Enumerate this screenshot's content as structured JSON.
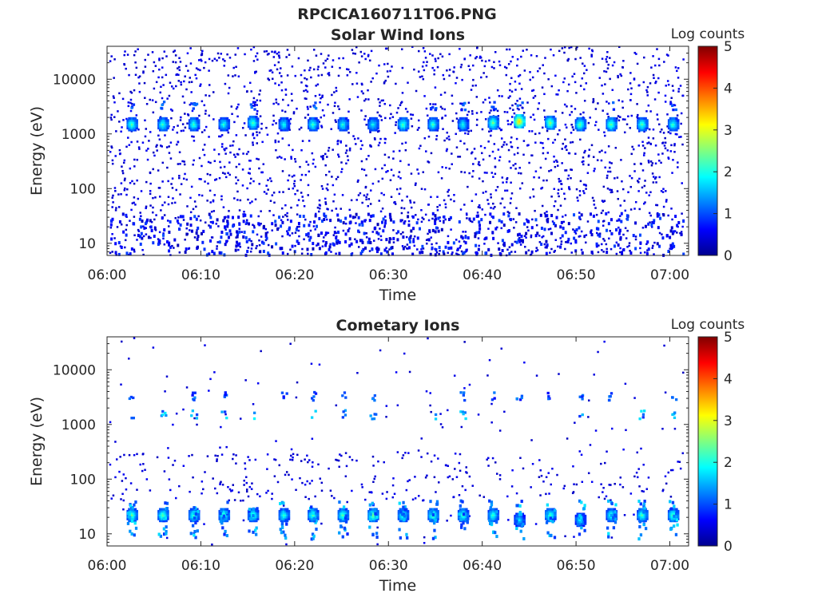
{
  "figure_title": "RPCICA160711T06.PNG",
  "chart_data": [
    {
      "type": "heatmap",
      "title": "Solar Wind Ions",
      "xlabel": "Time",
      "ylabel": "Energy (eV)",
      "y_scale": "log",
      "xlim": [
        "06:00",
        "07:02"
      ],
      "ylim": [
        6,
        40000
      ],
      "x_ticks": [
        "06:00",
        "06:10",
        "06:20",
        "06:30",
        "06:40",
        "06:50",
        "07:00"
      ],
      "y_ticks": [
        "10",
        "100",
        "1000",
        "10000"
      ],
      "colorbar": {
        "label": "Log counts",
        "ticks": [
          "0",
          "1",
          "2",
          "3",
          "4",
          "5"
        ],
        "range": [
          0,
          5
        ],
        "colormap": "jet"
      },
      "grid": false,
      "description_of_structure": "Periodic bursts approximately every 3.2 minutes",
      "bursts": [
        {
          "time": "06:02.7",
          "energy_eV": 1500,
          "peak_log_counts": 2.3
        },
        {
          "time": "06:06.0",
          "energy_eV": 1500,
          "peak_log_counts": 2.2
        },
        {
          "time": "06:09.3",
          "energy_eV": 1500,
          "peak_log_counts": 2.2
        },
        {
          "time": "06:12.5",
          "energy_eV": 1500,
          "peak_log_counts": 2.1
        },
        {
          "time": "06:15.6",
          "energy_eV": 1600,
          "peak_log_counts": 2.3
        },
        {
          "time": "06:18.9",
          "energy_eV": 1500,
          "peak_log_counts": 2.0
        },
        {
          "time": "06:22.0",
          "energy_eV": 1500,
          "peak_log_counts": 2.2
        },
        {
          "time": "06:25.2",
          "energy_eV": 1500,
          "peak_log_counts": 2.1
        },
        {
          "time": "06:28.4",
          "energy_eV": 1500,
          "peak_log_counts": 2.0
        },
        {
          "time": "06:31.6",
          "energy_eV": 1500,
          "peak_log_counts": 2.3
        },
        {
          "time": "06:34.8",
          "energy_eV": 1500,
          "peak_log_counts": 2.2
        },
        {
          "time": "06:38.0",
          "energy_eV": 1500,
          "peak_log_counts": 2.0
        },
        {
          "time": "06:41.2",
          "energy_eV": 1600,
          "peak_log_counts": 2.5
        },
        {
          "time": "06:44.0",
          "energy_eV": 1700,
          "peak_log_counts": 3.4
        },
        {
          "time": "06:47.3",
          "energy_eV": 1600,
          "peak_log_counts": 2.6
        },
        {
          "time": "06:50.5",
          "energy_eV": 1500,
          "peak_log_counts": 2.4
        },
        {
          "time": "06:53.8",
          "energy_eV": 1500,
          "peak_log_counts": 2.4
        },
        {
          "time": "06:57.1",
          "energy_eV": 1500,
          "peak_log_counts": 2.3
        },
        {
          "time": "07:00.4",
          "energy_eV": 1500,
          "peak_log_counts": 2.2
        }
      ],
      "secondary_band": {
        "energy_eV": 3300,
        "peak_log_counts": 1.2
      },
      "low_energy_band": {
        "energy_range_eV": [
          6,
          35
        ],
        "peak_log_counts": 1.0
      },
      "background_noise": {
        "energy_range_eV": [
          6,
          40000
        ],
        "log_counts": 0.3
      }
    },
    {
      "type": "heatmap",
      "title": "Cometary Ions",
      "xlabel": "Time",
      "ylabel": "Energy (eV)",
      "y_scale": "log",
      "xlim": [
        "06:00",
        "07:02"
      ],
      "ylim": [
        6,
        40000
      ],
      "x_ticks": [
        "06:00",
        "06:10",
        "06:20",
        "06:30",
        "06:40",
        "06:50",
        "07:00"
      ],
      "y_ticks": [
        "10",
        "100",
        "1000",
        "10000"
      ],
      "colorbar": {
        "label": "Log counts",
        "ticks": [
          "0",
          "1",
          "2",
          "3",
          "4",
          "5"
        ],
        "range": [
          0,
          5
        ],
        "colormap": "jet"
      },
      "grid": false,
      "description_of_structure": "Periodic bursts approximately every 3.2 minutes",
      "bursts": [
        {
          "time": "06:02.7",
          "energy_eV": 22,
          "peak_log_counts": 2.4
        },
        {
          "time": "06:06.0",
          "energy_eV": 22,
          "peak_log_counts": 2.4
        },
        {
          "time": "06:09.3",
          "energy_eV": 22,
          "peak_log_counts": 2.3
        },
        {
          "time": "06:12.5",
          "energy_eV": 22,
          "peak_log_counts": 2.4
        },
        {
          "time": "06:15.6",
          "energy_eV": 22,
          "peak_log_counts": 2.3
        },
        {
          "time": "06:18.9",
          "energy_eV": 22,
          "peak_log_counts": 2.2
        },
        {
          "time": "06:22.0",
          "energy_eV": 22,
          "peak_log_counts": 2.3
        },
        {
          "time": "06:25.2",
          "energy_eV": 22,
          "peak_log_counts": 2.4
        },
        {
          "time": "06:28.4",
          "energy_eV": 22,
          "peak_log_counts": 2.5
        },
        {
          "time": "06:31.6",
          "energy_eV": 22,
          "peak_log_counts": 2.3
        },
        {
          "time": "06:34.8",
          "energy_eV": 22,
          "peak_log_counts": 2.4
        },
        {
          "time": "06:38.0",
          "energy_eV": 22,
          "peak_log_counts": 2.3
        },
        {
          "time": "06:41.2",
          "energy_eV": 22,
          "peak_log_counts": 2.2
        },
        {
          "time": "06:44.0",
          "energy_eV": 18,
          "peak_log_counts": 1.8
        },
        {
          "time": "06:47.3",
          "energy_eV": 22,
          "peak_log_counts": 2.3
        },
        {
          "time": "06:50.5",
          "energy_eV": 18,
          "peak_log_counts": 1.9
        },
        {
          "time": "06:53.8",
          "energy_eV": 22,
          "peak_log_counts": 2.2
        },
        {
          "time": "06:57.1",
          "energy_eV": 22,
          "peak_log_counts": 2.3
        },
        {
          "time": "07:00.4",
          "energy_eV": 22,
          "peak_log_counts": 2.4
        }
      ],
      "secondary_band": {
        "energy_eV": 1500,
        "peak_log_counts": 1.7
      },
      "tertiary_band": {
        "energy_eV": 3300,
        "peak_log_counts": 1.2
      },
      "background_noise": {
        "energy_range_eV": [
          6,
          40000
        ],
        "log_counts": 0.3
      }
    }
  ]
}
